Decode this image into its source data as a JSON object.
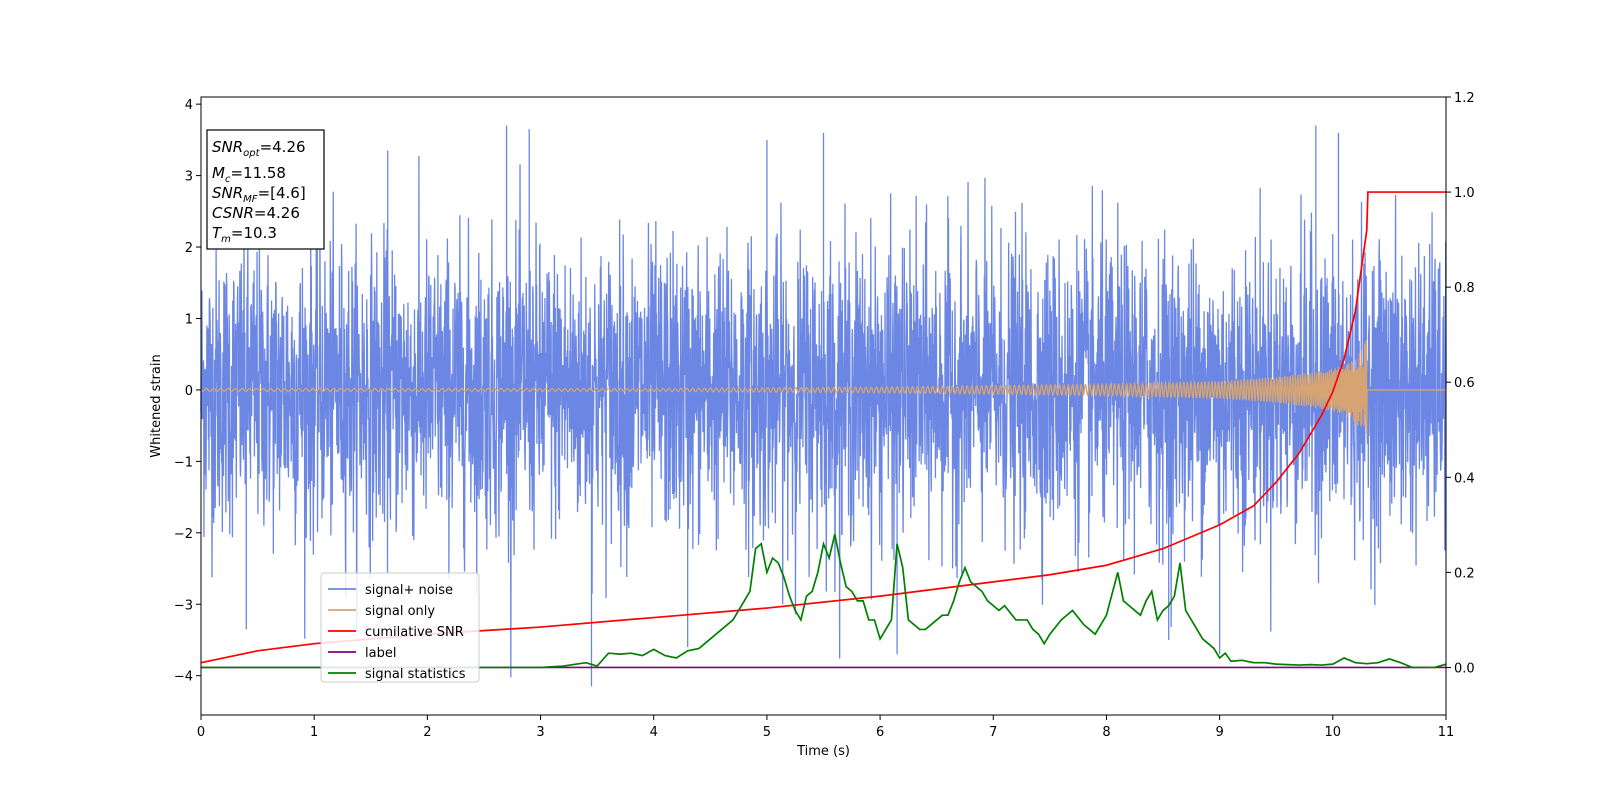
{
  "chart_data": {
    "type": "line",
    "title": "",
    "xlabel": "Time (s)",
    "ylabel": "Whitened strain",
    "xlim": [
      0,
      11
    ],
    "ylim": [
      -4.55,
      4.1
    ],
    "y2lim": [
      -0.1,
      1.2
    ],
    "grid": false,
    "legend_position": "lower-left",
    "x_ticks": [
      0,
      1,
      2,
      3,
      4,
      5,
      6,
      7,
      8,
      9,
      10,
      11
    ],
    "y_ticks": [
      -4,
      -3,
      -2,
      -1,
      0,
      1,
      2,
      3,
      4
    ],
    "y2_ticks": [
      0.0,
      0.2,
      0.4,
      0.6,
      0.8,
      1.0,
      1.2
    ],
    "info_box": {
      "snr_opt_sym": "SNR",
      "snr_opt_sub": "opt",
      "snr_opt_val": "=4.26",
      "mc_sym": "M",
      "mc_sub": "c",
      "mc_val": "=11.58",
      "snr_mf_sym": "SNR",
      "snr_mf_sub": "MF",
      "snr_mf_val": "=[4.6]",
      "csnr_sym": "CSNR",
      "csnr_val": "=4.26",
      "tm_sym": "T",
      "tm_sub": "m",
      "tm_val": "=10.3"
    },
    "series": [
      {
        "name": "signal+ noise",
        "color": "#6b87e3",
        "axis": "left",
        "description_values": {
          "mean": 0,
          "typical_amplitude": 1.0,
          "max_peak": 3.7,
          "min_peak": -4.15
        },
        "notable_peaks": [
          [
            0.4,
            -3.35
          ],
          [
            1.65,
            3.35
          ],
          [
            2.7,
            3.7
          ],
          [
            2.9,
            3.65
          ],
          [
            3.45,
            -4.15
          ],
          [
            4.3,
            -3.6
          ],
          [
            5.0,
            3.5
          ],
          [
            5.5,
            3.6
          ],
          [
            6.15,
            -3.7
          ],
          [
            8.55,
            -3.5
          ],
          [
            9.0,
            -3.7
          ],
          [
            9.85,
            3.7
          ],
          [
            10.05,
            3.6
          ]
        ]
      },
      {
        "name": "signal only",
        "color": "#d6a473",
        "axis": "left",
        "envelope": [
          [
            0,
            0.02
          ],
          [
            4,
            0.02
          ],
          [
            6,
            0.04
          ],
          [
            8,
            0.08
          ],
          [
            9,
            0.12
          ],
          [
            9.5,
            0.18
          ],
          [
            9.8,
            0.24
          ],
          [
            10.0,
            0.3
          ],
          [
            10.15,
            0.38
          ],
          [
            10.25,
            0.55
          ],
          [
            10.3,
            0.72
          ],
          [
            10.31,
            0.0
          ],
          [
            11,
            0.0
          ]
        ]
      },
      {
        "name": "cumilative SNR",
        "color": "#ff0000",
        "axis": "right",
        "x": [
          0,
          0.5,
          1,
          2,
          3,
          4,
          5,
          6,
          6.5,
          7,
          7.5,
          8,
          8.5,
          9,
          9.3,
          9.5,
          9.7,
          9.9,
          10.0,
          10.1,
          10.2,
          10.3,
          10.31,
          11
        ],
        "y": [
          0.01,
          0.035,
          0.05,
          0.07,
          0.085,
          0.105,
          0.125,
          0.15,
          0.165,
          0.18,
          0.195,
          0.215,
          0.25,
          0.3,
          0.34,
          0.39,
          0.45,
          0.53,
          0.58,
          0.65,
          0.75,
          0.92,
          1.0,
          1.0
        ]
      },
      {
        "name": "label",
        "color": "#800080",
        "axis": "right",
        "x": [
          0,
          11
        ],
        "y": [
          0,
          0
        ]
      },
      {
        "name": "signal statistics",
        "color": "#008000",
        "axis": "right",
        "x": [
          0,
          0.5,
          1,
          1.5,
          2,
          2.5,
          3,
          3.2,
          3.4,
          3.5,
          3.6,
          3.7,
          3.8,
          3.9,
          4.0,
          4.1,
          4.2,
          4.3,
          4.4,
          4.5,
          4.6,
          4.7,
          4.75,
          4.8,
          4.85,
          4.9,
          4.95,
          5.0,
          5.05,
          5.1,
          5.15,
          5.2,
          5.25,
          5.3,
          5.35,
          5.4,
          5.45,
          5.5,
          5.55,
          5.6,
          5.65,
          5.7,
          5.75,
          5.8,
          5.85,
          5.9,
          5.95,
          6.0,
          6.05,
          6.1,
          6.15,
          6.2,
          6.25,
          6.3,
          6.35,
          6.4,
          6.45,
          6.5,
          6.55,
          6.6,
          6.65,
          6.7,
          6.75,
          6.8,
          6.85,
          6.9,
          6.95,
          7.0,
          7.05,
          7.1,
          7.2,
          7.3,
          7.35,
          7.4,
          7.45,
          7.5,
          7.6,
          7.7,
          7.8,
          7.9,
          8.0,
          8.1,
          8.15,
          8.2,
          8.25,
          8.3,
          8.35,
          8.4,
          8.45,
          8.5,
          8.55,
          8.6,
          8.65,
          8.7,
          8.75,
          8.8,
          8.85,
          8.9,
          8.95,
          9.0,
          9.05,
          9.1,
          9.2,
          9.3,
          9.4,
          9.5,
          9.6,
          9.7,
          9.8,
          9.9,
          10.0,
          10.1,
          10.2,
          10.3,
          10.4,
          10.5,
          10.6,
          10.7,
          10.8,
          10.9,
          11.0
        ],
        "y": [
          0.0,
          0.0,
          0.0,
          0.0,
          0.0,
          0.0,
          0.0,
          0.003,
          0.01,
          0.003,
          0.03,
          0.028,
          0.03,
          0.025,
          0.038,
          0.025,
          0.02,
          0.035,
          0.04,
          0.06,
          0.08,
          0.1,
          0.12,
          0.14,
          0.16,
          0.25,
          0.26,
          0.2,
          0.23,
          0.22,
          0.19,
          0.15,
          0.12,
          0.1,
          0.15,
          0.16,
          0.2,
          0.26,
          0.23,
          0.28,
          0.22,
          0.17,
          0.16,
          0.14,
          0.14,
          0.1,
          0.1,
          0.06,
          0.08,
          0.1,
          0.26,
          0.21,
          0.1,
          0.09,
          0.08,
          0.08,
          0.09,
          0.1,
          0.11,
          0.11,
          0.14,
          0.18,
          0.21,
          0.18,
          0.17,
          0.16,
          0.14,
          0.13,
          0.12,
          0.13,
          0.1,
          0.1,
          0.08,
          0.07,
          0.05,
          0.07,
          0.1,
          0.12,
          0.09,
          0.07,
          0.11,
          0.2,
          0.14,
          0.13,
          0.12,
          0.11,
          0.14,
          0.16,
          0.1,
          0.12,
          0.13,
          0.15,
          0.22,
          0.12,
          0.1,
          0.08,
          0.06,
          0.05,
          0.04,
          0.02,
          0.03,
          0.013,
          0.015,
          0.01,
          0.01,
          0.007,
          0.006,
          0.005,
          0.006,
          0.005,
          0.007,
          0.02,
          0.01,
          0.008,
          0.01,
          0.018,
          0.01,
          0.0,
          0.0,
          0.0,
          0.007
        ]
      }
    ]
  }
}
